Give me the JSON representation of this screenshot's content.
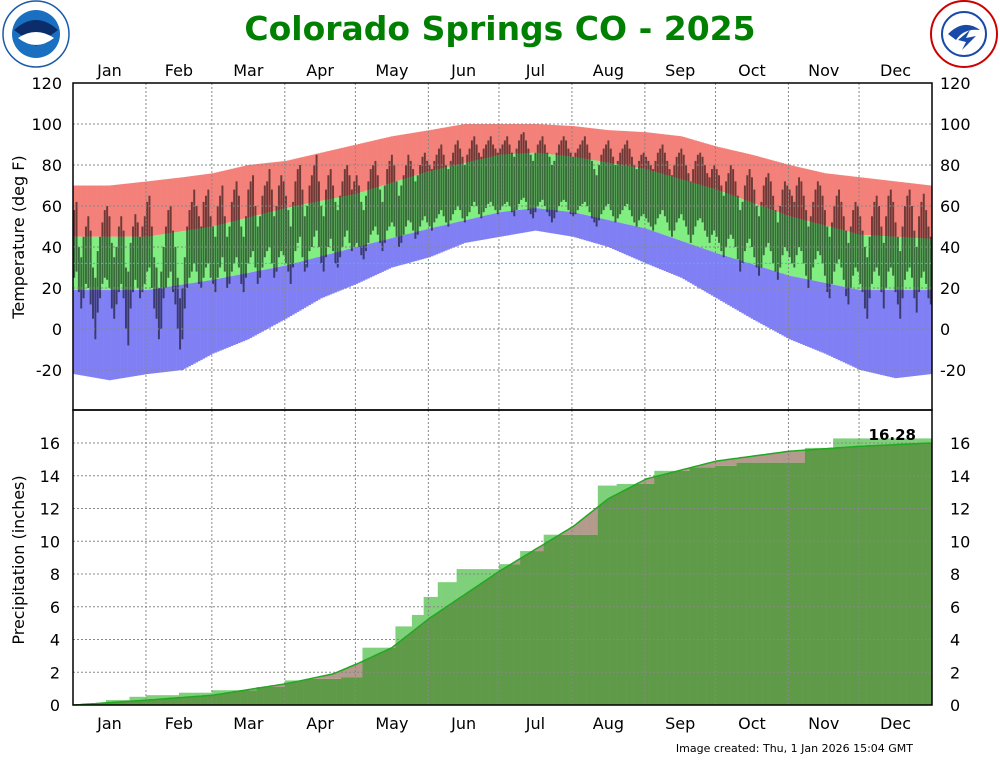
{
  "header": {
    "title": "Colorado Springs CO - 2025",
    "left_logo": "NOAA",
    "right_logo": "NATIONAL WEATHER SERVICE"
  },
  "footer": {
    "created": "Image created: Thu, 1 Jan 2026 15:04 GMT"
  },
  "colors": {
    "title": "#008000",
    "record_high": "#f4807a",
    "normal": "#80ee80",
    "record_low": "#8080f4",
    "observed": "#000000",
    "precip_fill": "#5e9a48",
    "precip_surplus": "#7fd07a",
    "precip_deficit": "#b39a8c",
    "precip_normal_line": "#22a822",
    "freezing_line": "#00d8e8"
  },
  "chart_data": [
    {
      "type": "bar",
      "title": "Temperature",
      "ylabel": "Temperature (deg F)",
      "ylim": [
        -40,
        120
      ],
      "yticks": [
        120,
        100,
        80,
        60,
        40,
        20,
        0,
        -20
      ],
      "months": [
        "Jan",
        "Feb",
        "Mar",
        "Apr",
        "May",
        "Jun",
        "Jul",
        "Aug",
        "Sep",
        "Oct",
        "Nov",
        "Dec"
      ],
      "grid": true,
      "record_high": {
        "day": [
          0,
          15,
          31,
          46,
          59,
          74,
          90,
          105,
          120,
          135,
          151,
          166,
          181,
          196,
          212,
          227,
          243,
          258,
          273,
          288,
          304,
          319,
          334,
          349,
          364
        ],
        "value": [
          70,
          70,
          72,
          74,
          76,
          80,
          82,
          86,
          90,
          94,
          97,
          100,
          100,
          100,
          99,
          97,
          96,
          94,
          89,
          85,
          80,
          76,
          74,
          72,
          70
        ]
      },
      "record_low": {
        "day": [
          0,
          15,
          31,
          46,
          59,
          74,
          90,
          105,
          120,
          135,
          151,
          166,
          181,
          196,
          212,
          227,
          243,
          258,
          273,
          288,
          304,
          319,
          334,
          349,
          364
        ],
        "value": [
          -22,
          -25,
          -22,
          -20,
          -12,
          -5,
          5,
          15,
          22,
          30,
          35,
          42,
          45,
          48,
          45,
          40,
          32,
          25,
          15,
          5,
          -5,
          -12,
          -20,
          -24,
          -22
        ]
      },
      "normal_high": {
        "day": [
          0,
          31,
          59,
          90,
          120,
          151,
          181,
          196,
          212,
          243,
          273,
          304,
          334,
          364
        ],
        "value": [
          45,
          45,
          50,
          59,
          66,
          77,
          85,
          86,
          84,
          78,
          68,
          55,
          46,
          44
        ]
      },
      "normal_low": {
        "day": [
          0,
          31,
          59,
          90,
          120,
          151,
          181,
          196,
          212,
          243,
          273,
          304,
          334,
          364
        ],
        "value": [
          19,
          19,
          24,
          31,
          40,
          49,
          57,
          59,
          57,
          49,
          37,
          26,
          19,
          19
        ]
      },
      "observed_high": [
        58,
        62,
        40,
        35,
        45,
        50,
        55,
        48,
        30,
        25,
        38,
        45,
        52,
        58,
        60,
        55,
        42,
        35,
        40,
        50,
        55,
        48,
        30,
        28,
        42,
        50,
        56,
        52,
        45,
        50,
        55,
        62,
        65,
        50,
        35,
        30,
        20,
        28,
        40,
        50,
        58,
        60,
        48,
        40,
        25,
        15,
        20,
        35,
        50,
        58,
        62,
        68,
        60,
        55,
        50,
        62,
        65,
        68,
        55,
        50,
        45,
        60,
        65,
        70,
        55,
        45,
        50,
        62,
        68,
        72,
        65,
        50,
        45,
        55,
        68,
        72,
        75,
        60,
        50,
        55,
        65,
        70,
        72,
        78,
        68,
        55,
        60,
        70,
        75,
        72,
        65,
        58,
        50,
        62,
        72,
        78,
        80,
        68,
        55,
        60,
        70,
        75,
        80,
        85,
        72,
        60,
        55,
        68,
        75,
        78,
        70,
        62,
        58,
        65,
        72,
        78,
        80,
        75,
        68,
        72,
        75,
        70,
        62,
        58,
        65,
        72,
        78,
        80,
        82,
        75,
        68,
        62,
        70,
        78,
        82,
        85,
        80,
        72,
        65,
        70,
        75,
        80,
        85,
        82,
        78,
        72,
        75,
        80,
        84,
        86,
        82,
        80,
        78,
        82,
        85,
        88,
        90,
        85,
        80,
        78,
        82,
        86,
        90,
        92,
        88,
        84,
        80,
        85,
        88,
        92,
        94,
        90,
        86,
        84,
        88,
        90,
        92,
        94,
        90,
        88,
        86,
        88,
        90,
        92,
        94,
        90,
        86,
        84,
        88,
        92,
        95,
        96,
        92,
        88,
        85,
        82,
        86,
        90,
        92,
        94,
        90,
        86,
        84,
        80,
        82,
        86,
        90,
        92,
        94,
        92,
        88,
        86,
        84,
        86,
        88,
        90,
        92,
        94,
        90,
        86,
        82,
        78,
        75,
        80,
        85,
        88,
        90,
        92,
        88,
        84,
        80,
        82,
        86,
        88,
        90,
        92,
        88,
        84,
        80,
        78,
        82,
        85,
        86,
        84,
        82,
        80,
        78,
        82,
        86,
        88,
        90,
        86,
        82,
        78,
        75,
        80,
        84,
        86,
        88,
        85,
        80,
        76,
        72,
        78,
        82,
        85,
        86,
        84,
        80,
        76,
        74,
        78,
        80,
        78,
        75,
        70,
        65,
        72,
        76,
        80,
        78,
        72,
        65,
        58,
        62,
        70,
        75,
        78,
        74,
        68,
        60,
        55,
        62,
        70,
        74,
        76,
        72,
        65,
        58,
        52,
        60,
        68,
        72,
        70,
        68,
        65,
        62,
        70,
        74,
        72,
        65,
        58,
        50,
        55,
        62,
        68,
        72,
        70,
        65,
        58,
        50,
        45,
        52,
        60,
        65,
        68,
        62,
        55,
        48,
        42,
        50,
        58,
        62,
        60,
        55,
        48,
        40,
        35,
        45,
        55,
        62,
        65,
        60,
        50,
        42,
        55,
        65,
        68,
        62,
        52,
        45,
        38,
        50,
        60,
        65,
        68,
        60,
        48,
        40,
        55,
        62,
        66,
        58,
        50,
        45
      ],
      "observed_low": [
        25,
        28,
        18,
        10,
        15,
        22,
        20,
        12,
        5,
        -5,
        8,
        15,
        22,
        25,
        24,
        20,
        10,
        5,
        12,
        18,
        22,
        15,
        0,
        -8,
        10,
        18,
        24,
        20,
        15,
        18,
        22,
        28,
        30,
        20,
        10,
        5,
        -5,
        0,
        15,
        20,
        25,
        28,
        18,
        12,
        0,
        -10,
        -5,
        10,
        20,
        25,
        28,
        32,
        28,
        22,
        20,
        25,
        30,
        32,
        25,
        22,
        18,
        25,
        30,
        35,
        28,
        20,
        22,
        28,
        32,
        35,
        30,
        22,
        18,
        25,
        32,
        35,
        38,
        30,
        22,
        25,
        30,
        35,
        38,
        40,
        32,
        25,
        28,
        35,
        38,
        36,
        32,
        28,
        22,
        30,
        38,
        42,
        45,
        35,
        28,
        30,
        38,
        40,
        45,
        48,
        40,
        32,
        28,
        35,
        40,
        44,
        38,
        32,
        30,
        35,
        40,
        45,
        48,
        42,
        38,
        40,
        42,
        40,
        36,
        34,
        38,
        42,
        46,
        48,
        50,
        46,
        42,
        38,
        42,
        48,
        50,
        52,
        50,
        45,
        40,
        42,
        46,
        50,
        53,
        52,
        48,
        44,
        46,
        50,
        53,
        55,
        52,
        50,
        48,
        52,
        54,
        56,
        58,
        55,
        52,
        50,
        53,
        56,
        58,
        60,
        58,
        54,
        52,
        55,
        57,
        60,
        62,
        60,
        56,
        54,
        57,
        59,
        61,
        62,
        60,
        58,
        56,
        58,
        60,
        61,
        62,
        60,
        57,
        55,
        58,
        61,
        63,
        64,
        62,
        58,
        56,
        54,
        57,
        60,
        62,
        63,
        60,
        57,
        55,
        52,
        54,
        57,
        60,
        62,
        63,
        62,
        58,
        56,
        55,
        56,
        58,
        60,
        61,
        62,
        60,
        57,
        54,
        52,
        50,
        53,
        56,
        58,
        60,
        61,
        58,
        55,
        52,
        54,
        56,
        58,
        60,
        61,
        58,
        55,
        52,
        50,
        53,
        55,
        56,
        54,
        52,
        50,
        48,
        51,
        54,
        56,
        58,
        55,
        52,
        48,
        45,
        48,
        52,
        54,
        56,
        53,
        50,
        46,
        42,
        46,
        50,
        53,
        54,
        52,
        48,
        45,
        42,
        46,
        48,
        45,
        42,
        38,
        35,
        40,
        44,
        46,
        44,
        40,
        34,
        28,
        32,
        38,
        42,
        44,
        40,
        35,
        30,
        26,
        30,
        36,
        40,
        42,
        38,
        32,
        28,
        24,
        30,
        36,
        40,
        38,
        35,
        32,
        30,
        36,
        40,
        38,
        32,
        26,
        20,
        24,
        30,
        34,
        38,
        36,
        32,
        26,
        18,
        15,
        22,
        28,
        32,
        34,
        30,
        24,
        16,
        12,
        20,
        26,
        30,
        28,
        22,
        18,
        10,
        5,
        15,
        22,
        28,
        30,
        26,
        18,
        10,
        20,
        28,
        30,
        26,
        18,
        12,
        5,
        15,
        24,
        28,
        30,
        25,
        15,
        8,
        18,
        25,
        28,
        22,
        15,
        12
      ]
    },
    {
      "type": "area",
      "title": "Precipitation",
      "ylabel": "Precipitation (inches)",
      "ylim": [
        0,
        17.4
      ],
      "yticks": [
        16,
        14,
        12,
        10,
        8,
        6,
        4,
        2,
        0
      ],
      "months": [
        "Jan",
        "Feb",
        "Mar",
        "Apr",
        "May",
        "Jun",
        "Jul",
        "Aug",
        "Sep",
        "Oct",
        "Nov",
        "Dec"
      ],
      "grid": true,
      "total_label": "16.28",
      "observed_cumulative": {
        "day": [
          0,
          4,
          14,
          24,
          31,
          45,
          59,
          78,
          90,
          99,
          114,
          123,
          137,
          144,
          149,
          155,
          163,
          181,
          190,
          200,
          223,
          231,
          247,
          262,
          273,
          282,
          311,
          323
        ],
        "value": [
          0,
          0.1,
          0.3,
          0.5,
          0.6,
          0.75,
          0.9,
          1.1,
          1.5,
          1.6,
          1.7,
          3.5,
          4.8,
          5.5,
          6.6,
          7.5,
          8.3,
          8.6,
          9.4,
          10.4,
          13.4,
          13.5,
          14.3,
          14.5,
          14.6,
          14.8,
          15.7,
          16.28
        ]
      },
      "normal_cumulative": {
        "day": [
          0,
          31,
          59,
          90,
          110,
          120,
          135,
          151,
          181,
          212,
          227,
          243,
          273,
          304,
          334,
          364
        ],
        "value": [
          0,
          0.3,
          0.6,
          1.3,
          1.9,
          2.5,
          3.5,
          5.3,
          8.2,
          10.9,
          12.6,
          13.8,
          14.9,
          15.5,
          15.8,
          16.0
        ]
      }
    }
  ]
}
